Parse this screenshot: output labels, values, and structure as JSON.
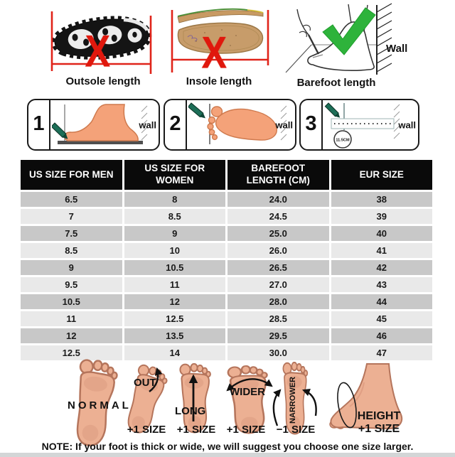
{
  "top_methods": [
    {
      "label": "Outsole length",
      "mark": "X",
      "mark_icon": "red-x-icon"
    },
    {
      "label": "Insole length",
      "mark": "X",
      "mark_icon": "red-x-icon"
    },
    {
      "label": "Barefoot length",
      "mark": "check",
      "mark_icon": "green-check-icon",
      "wall_label": "Wall"
    }
  ],
  "steps": [
    {
      "number": "1",
      "wall_label": "wall"
    },
    {
      "number": "2",
      "wall_label": "wall"
    },
    {
      "number": "3",
      "wall_label": "wall",
      "measurement": "11.5CM"
    }
  ],
  "size_table": {
    "headers": [
      "US SIZE FOR MEN",
      "US SIZE FOR WOMEN",
      "BAREFOOT LENGTH (CM)",
      "EUR SIZE"
    ],
    "rows": [
      [
        "6.5",
        "8",
        "24.0",
        "38"
      ],
      [
        "7",
        "8.5",
        "24.5",
        "39"
      ],
      [
        "7.5",
        "9",
        "25.0",
        "40"
      ],
      [
        "8.5",
        "10",
        "26.0",
        "41"
      ],
      [
        "9",
        "10.5",
        "26.5",
        "42"
      ],
      [
        "9.5",
        "11",
        "27.0",
        "43"
      ],
      [
        "10.5",
        "12",
        "28.0",
        "44"
      ],
      [
        "11",
        "12.5",
        "28.5",
        "45"
      ],
      [
        "12",
        "13.5",
        "29.5",
        "46"
      ],
      [
        "12.5",
        "14",
        "30.0",
        "47"
      ]
    ]
  },
  "fit_guide": {
    "items": [
      {
        "label": "NORMAL",
        "size_note": ""
      },
      {
        "label": "OUT",
        "size_note": "+1 SIZE"
      },
      {
        "label": "LONG",
        "size_note": "+1 SIZE"
      },
      {
        "label": "WIDER",
        "size_note": "+1 SIZE"
      },
      {
        "label": "NARROWER",
        "size_note": "−1 SIZE"
      },
      {
        "label": "HEIGHT",
        "size_note": "+1 SIZE"
      }
    ],
    "note": "NOTE: If your foot is thick or wide, we will suggest you choose one size larger."
  },
  "colors": {
    "accent_red": "#e0180d",
    "accent_green": "#2eb33b",
    "pencil_green": "#1c6e57",
    "skin": "#ecb093",
    "step_foot": "#f4a279",
    "table_header_bg": "#0a0a0a",
    "row_dark": "#c8c8c8",
    "row_light": "#e9e9e9"
  }
}
